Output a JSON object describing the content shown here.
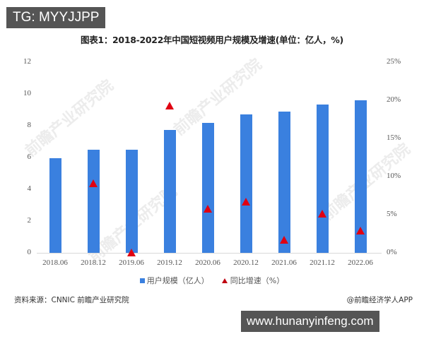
{
  "overlay": {
    "top_tag": "TG: MYYJJPP",
    "bottom_tag": "www.hunanyinfeng.com"
  },
  "footer": {
    "source": "资料来源：CNNIC 前瞻产业研究院",
    "credit": "@前瞻经济学人APP"
  },
  "watermark": "前瞻产业研究院",
  "colors": {
    "bar": "#3a80df",
    "marker": "#e00012"
  },
  "chart_data": {
    "type": "bar",
    "title": "图表1：2018-2022年中国短视频用户规模及增速(单位：亿人，%)",
    "categories": [
      "2018.06",
      "2018.12",
      "2019.06",
      "2019.12",
      "2020.06",
      "2020.12",
      "2021.06",
      "2021.12",
      "2022.06"
    ],
    "series": [
      {
        "name": "用户规模（亿人）",
        "type": "bar",
        "axis": "left",
        "values": [
          5.94,
          6.48,
          6.48,
          7.73,
          8.18,
          8.73,
          8.88,
          9.34,
          9.62
        ]
      },
      {
        "name": "同比增速（%）",
        "type": "scatter",
        "marker": "triangle",
        "axis": "right",
        "values": [
          null,
          9.1,
          0.0,
          19.3,
          5.7,
          6.7,
          1.7,
          5.1,
          2.9
        ]
      }
    ],
    "left_axis": {
      "ylim": [
        0,
        12
      ],
      "ticks": [
        "0",
        "2",
        "4",
        "6",
        "8",
        "10",
        "12"
      ]
    },
    "right_axis": {
      "ylim": [
        0,
        25
      ],
      "ticks": [
        "0%",
        "5%",
        "10%",
        "15%",
        "20%",
        "25%"
      ]
    },
    "xlabel": "",
    "ylabel": "",
    "grid": false,
    "legend_position": "bottom"
  }
}
